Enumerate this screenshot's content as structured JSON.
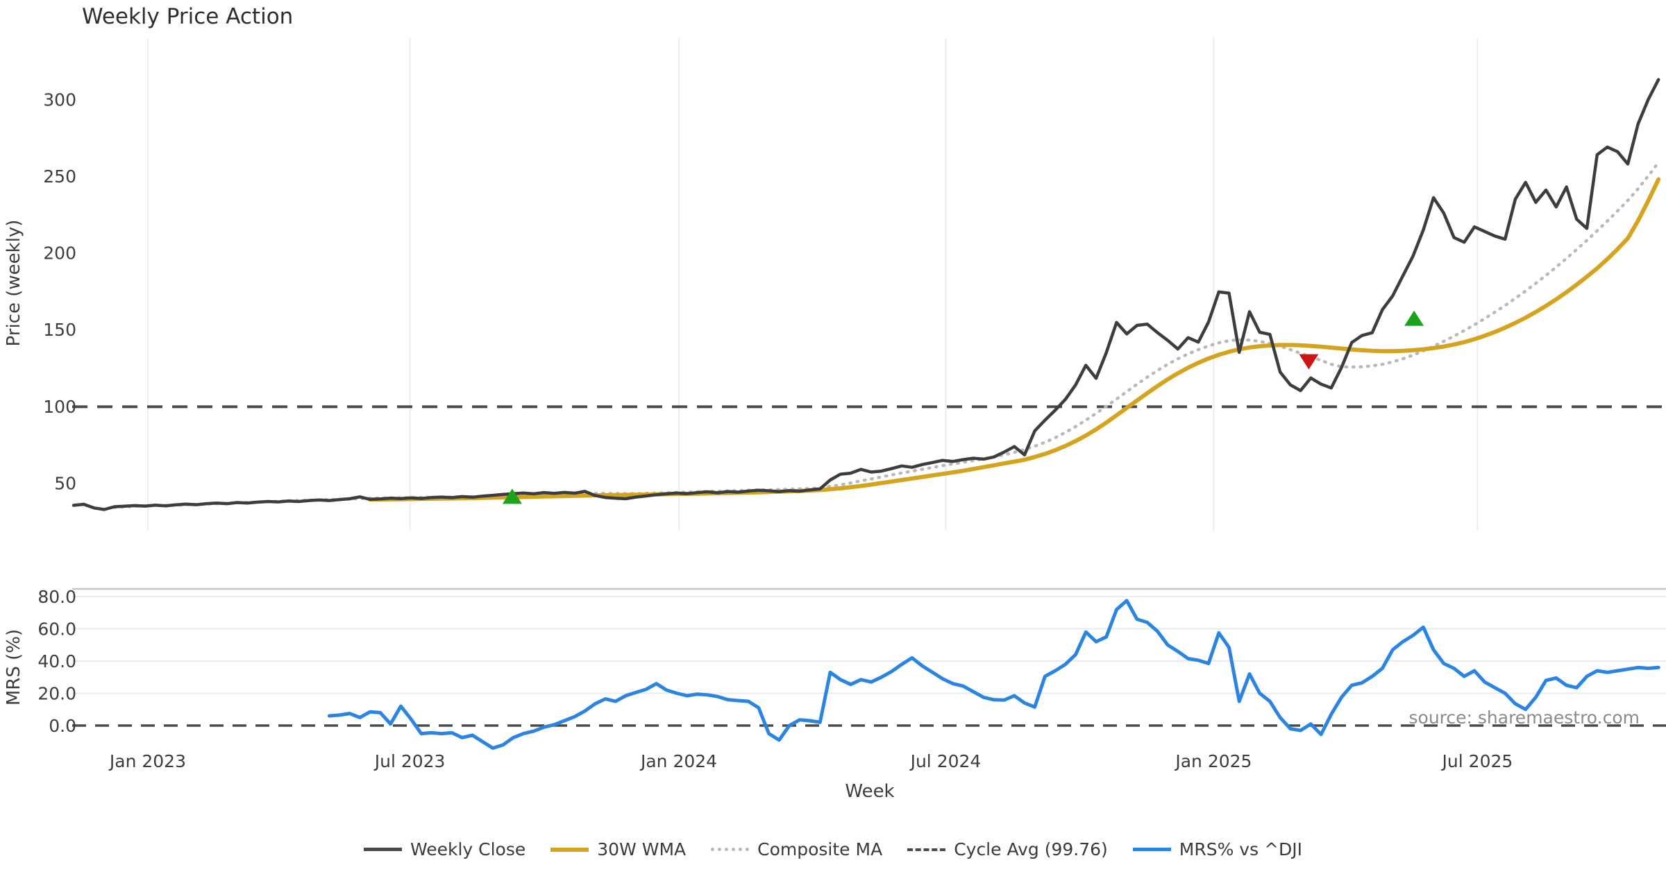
{
  "title": "Weekly Price Action",
  "source_note": "source: sharemaestro.com",
  "legend": {
    "items": [
      {
        "label": "Weekly Close",
        "style": "solid-dark"
      },
      {
        "label": "30W WMA",
        "style": "solid-gold"
      },
      {
        "label": "Composite MA",
        "style": "dotted-gray"
      },
      {
        "label": "Cycle Avg (99.76)",
        "style": "dashed-dark"
      },
      {
        "label": "MRS% vs ^DJI",
        "style": "solid-blue"
      }
    ]
  },
  "colors": {
    "weekly_close": "#3d3d3d",
    "wma": "#d5a41f",
    "composite": "#b9b9b9",
    "cycle_avg": "#4a4a4a",
    "mrs": "#2b84e0",
    "buy_marker": "#1ba31b",
    "sell_marker": "#cc1515",
    "grid_vertical": "#ececf1",
    "grid_horizontal": "#e9ebf2",
    "panel_border": "#c6c6c6",
    "tick_text": "#3c3c3c",
    "muted_text": "#8a8a8a"
  },
  "chart_data": {
    "type": "line",
    "title": "Weekly Price Action",
    "xlabel": "Week",
    "x_unit": "weekly index from first plotted week",
    "xticks": [
      {
        "label": "Jan 2023",
        "week": 7.26
      },
      {
        "label": "Jul 2023",
        "week": 32.9
      },
      {
        "label": "Jan 2024",
        "week": 59.2
      },
      {
        "label": "Jul 2024",
        "week": 85.3
      },
      {
        "label": "Jan 2025",
        "week": 111.5
      },
      {
        "label": "Jul 2025",
        "week": 137.3
      }
    ],
    "panels": [
      {
        "name": "price",
        "ylabel": "Price (weekly)",
        "yticks": [
          50,
          100,
          150,
          200,
          250,
          300
        ],
        "ylim": [
          19,
          340
        ],
        "grid": "vertical-only",
        "cycle_avg_value": 99.76,
        "series": [
          {
            "name": "Weekly Close",
            "start_week": 0,
            "values": [
              35.5,
              36.2,
              33.8,
              32.8,
              34.6,
              34.9,
              35.3,
              35.0,
              35.6,
              35.2,
              35.8,
              36.3,
              35.9,
              36.6,
              37.0,
              36.6,
              37.3,
              37.0,
              37.6,
              38.0,
              37.7,
              38.3,
              38.0,
              38.6,
              39.0,
              38.6,
              39.2,
              39.8,
              41.0,
              39.4,
              39.7,
              40.2,
              39.9,
              40.4,
              40.0,
              40.6,
              40.9,
              40.5,
              41.2,
              40.8,
              41.5,
              42.0,
              42.6,
              43.1,
              43.5,
              43.0,
              43.8,
              43.3,
              43.9,
              43.4,
              44.6,
              41.9,
              40.6,
              40.1,
              39.8,
              40.9,
              41.6,
              42.4,
              43.0,
              43.5,
              43.1,
              43.8,
              44.3,
              43.7,
              44.5,
              44.1,
              44.8,
              45.3,
              45.0,
              44.4,
              45.1,
              44.7,
              45.6,
              46.2,
              52.0,
              55.8,
              56.5,
              58.9,
              57.2,
              57.8,
              59.4,
              61.2,
              60.3,
              62.1,
              63.4,
              64.8,
              64.1,
              65.3,
              66.2,
              65.6,
              67.0,
              70.2,
              73.8,
              68.4,
              84.0,
              91.0,
              97.5,
              104.6,
              114.0,
              126.8,
              118.3,
              135.0,
              154.7,
              147.2,
              152.8,
              153.6,
              148.1,
              143.0,
              137.4,
              144.8,
              141.9,
              155.0,
              174.6,
              173.8,
              135.2,
              161.7,
              148.3,
              146.9,
              122.4,
              114.0,
              110.3,
              118.5,
              114.5,
              112.0,
              125.3,
              141.6,
              146.2,
              148.0,
              163.0,
              172.0,
              185.0,
              198.0,
              215.0,
              236.0,
              226.0,
              210.0,
              207.0,
              217.0,
              214.0,
              211.0,
              209.0,
              235.0,
              246.0,
              233.0,
              241.0,
              230.0,
              243.0,
              222.0,
              216.0,
              264.0,
              269.0,
              266.0,
              258.0,
              284.0,
              300.0,
              313.0
            ]
          },
          {
            "name": "30W WMA",
            "start_week": 29,
            "values": [
              39.2,
              39.3,
              39.4,
              39.5,
              39.6,
              39.7,
              39.8,
              39.9,
              40.0,
              40.1,
              40.2,
              40.35,
              40.5,
              40.65,
              40.8,
              40.95,
              41.1,
              41.25,
              41.4,
              41.55,
              41.7,
              41.85,
              42.0,
              42.1,
              42.2,
              42.3,
              42.4,
              42.5,
              42.65,
              42.8,
              42.9,
              43.0,
              43.1,
              43.25,
              43.4,
              43.55,
              43.7,
              43.85,
              44.0,
              44.2,
              44.4,
              44.6,
              44.85,
              45.1,
              45.5,
              46.0,
              46.6,
              47.3,
              48.1,
              49.0,
              50.0,
              51.0,
              52.0,
              53.0,
              54.0,
              55.0,
              56.0,
              57.0,
              58.0,
              59.2,
              60.4,
              61.6,
              62.8,
              64.0,
              65.2,
              67.0,
              69.0,
              71.4,
              74.2,
              77.4,
              81.0,
              85.0,
              89.4,
              94.2,
              99.0,
              103.8,
              108.6,
              113.2,
              117.6,
              121.6,
              125.2,
              128.4,
              131.2,
              133.6,
              135.6,
              137.2,
              138.4,
              139.2,
              139.7,
              140.0,
              140.0,
              139.8,
              139.4,
              138.9,
              138.3,
              137.7,
              137.1,
              136.6,
              136.2,
              136.0,
              136.0,
              136.2,
              136.6,
              137.2,
              138.0,
              139.0,
              140.3,
              141.9,
              143.8,
              146.0,
              148.5,
              151.3,
              154.4,
              157.8,
              161.5,
              165.5,
              169.8,
              174.4,
              179.3,
              184.5,
              190.0,
              196.0,
              202.5,
              209.5,
              221.0,
              234.0,
              248.0
            ]
          },
          {
            "name": "Composite MA",
            "start_week": 4,
            "values": [
              34.2,
              34.5,
              34.9,
              35.1,
              35.3,
              35.4,
              35.6,
              35.9,
              36.1,
              36.4,
              36.6,
              36.9,
              37.1,
              37.4,
              37.6,
              37.9,
              38.1,
              38.4,
              38.6,
              38.8,
              39.0,
              39.2,
              39.4,
              39.6,
              39.9,
              40.1,
              40.2,
              40.3,
              40.4,
              40.5,
              40.6,
              40.7,
              40.8,
              40.9,
              41.0,
              41.1,
              41.3,
              41.5,
              41.7,
              41.9,
              42.1,
              42.3,
              42.5,
              42.7,
              42.9,
              43.0,
              43.2,
              43.3,
              43.3,
              43.2,
              43.1,
              43.2,
              43.3,
              43.5,
              43.7,
              43.9,
              44.1,
              44.3,
              44.5,
              44.7,
              44.9,
              45.1,
              45.3,
              45.5,
              45.6,
              45.8,
              46.0,
              46.2,
              46.5,
              46.9,
              47.8,
              48.9,
              50.1,
              51.4,
              52.7,
              54.0,
              55.3,
              56.6,
              57.8,
              59.0,
              60.2,
              61.4,
              62.5,
              63.6,
              64.7,
              65.8,
              67.0,
              68.4,
              70.0,
              71.8,
              74.0,
              76.6,
              79.6,
              83.0,
              86.8,
              91.0,
              95.4,
              100.0,
              104.8,
              109.6,
              114.4,
              119.0,
              123.4,
              127.4,
              131.0,
              134.2,
              137.0,
              139.4,
              141.4,
              142.8,
              143.4,
              143.2,
              142.4,
              141.0,
              139.2,
              137.0,
              134.6,
              132.2,
              130.0,
              127.4,
              125.8,
              125.6,
              125.8,
              126.4,
              127.4,
              129.0,
              131.0,
              133.4,
              136.2,
              139.2,
              142.4,
              145.8,
              149.4,
              153.2,
              157.2,
              161.4,
              165.8,
              170.4,
              175.2,
              180.2,
              185.4,
              190.8,
              196.4,
              202.2,
              208.2,
              214.4,
              220.8,
              227.4,
              234.2,
              241.8,
              250.2,
              259.0
            ]
          },
          {
            "name": "Cycle Avg (99.76)",
            "constant": 99.76
          }
        ],
        "markers": [
          {
            "week": 42.9,
            "value": 41.0,
            "type": "buy",
            "shape": "triangle-up",
            "color": "#1ba31b"
          },
          {
            "week": 120.8,
            "value": 129.5,
            "type": "sell",
            "shape": "triangle-down",
            "color": "#cc1515"
          },
          {
            "week": 131.1,
            "value": 157.0,
            "type": "buy",
            "shape": "triangle-up",
            "color": "#1ba31b"
          }
        ]
      },
      {
        "name": "mrs",
        "ylabel": "MRS (%)",
        "ytick_labels": [
          "0.0",
          "20.0",
          "40.0",
          "60.0",
          "80.0"
        ],
        "yticks": [
          0,
          20,
          40,
          60,
          80
        ],
        "ylim": [
          -15.5,
          85.2
        ],
        "grid": "horizontal-only",
        "zero_line": 0,
        "series": [
          {
            "name": "MRS% vs ^DJI",
            "start_week": 25,
            "values": [
              6,
              6.5,
              7.5,
              5,
              8.5,
              8,
              1,
              12,
              4,
              -5,
              -4.5,
              -5,
              -4.5,
              -7.5,
              -6,
              -10,
              -14,
              -12,
              -7.5,
              -5,
              -3.5,
              -1,
              0.5,
              3,
              5.5,
              9,
              13.5,
              16.5,
              15,
              18.5,
              20.5,
              22.5,
              26,
              22,
              20,
              18.5,
              19.5,
              19,
              18,
              16,
              15.5,
              15,
              11,
              -5,
              -9,
              0,
              3.5,
              3,
              2,
              33,
              28.5,
              25.5,
              28.5,
              27,
              30,
              33.5,
              38,
              42,
              37,
              33,
              29,
              26,
              24.5,
              21,
              17.5,
              16,
              15.8,
              18.5,
              14,
              11.5,
              30.5,
              34,
              38,
              44,
              58,
              52,
              55,
              72,
              77.5,
              66,
              64,
              58.5,
              50,
              46,
              41.5,
              40.5,
              38.5,
              57.5,
              48.5,
              15,
              32,
              20,
              15,
              5,
              -2,
              -3,
              1,
              -5.5,
              7,
              17.5,
              25,
              26.5,
              30.5,
              35.5,
              47,
              52,
              56,
              61,
              47,
              38.5,
              35.5,
              30.5,
              34,
              27,
              23.5,
              20,
              13.5,
              10,
              17.5,
              28,
              29.5,
              25,
              23.5,
              30.5,
              34,
              33,
              34,
              35,
              36,
              35.5,
              36
            ]
          }
        ]
      }
    ],
    "legend_entries": [
      "Weekly Close",
      "30W WMA",
      "Composite MA",
      "Cycle Avg (99.76)",
      "MRS% vs ^DJI"
    ],
    "legend_position": "bottom-center",
    "annotations": [
      "source: sharemaestro.com"
    ]
  }
}
